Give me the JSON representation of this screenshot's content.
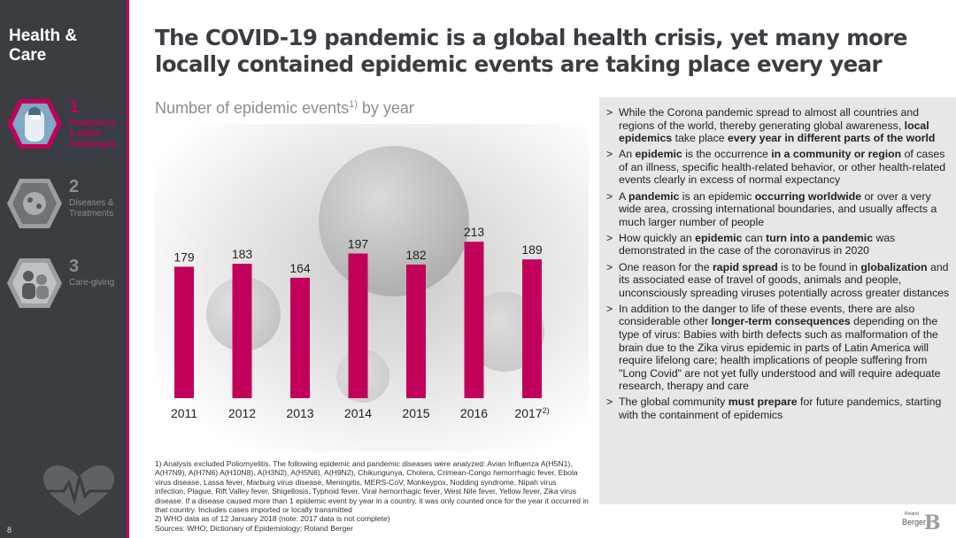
{
  "sidebar": {
    "title": "Health & Care",
    "items": [
      {
        "num": "1",
        "label": "Pandemics & Other Challenges",
        "active": true,
        "icon": "doctor-photo-icon"
      },
      {
        "num": "2",
        "label": "Diseases & Treatments",
        "active": false,
        "icon": "virus-photo-icon"
      },
      {
        "num": "3",
        "label": "Care-giving",
        "active": false,
        "icon": "caregiver-photo-icon"
      }
    ],
    "heart_icon": "heartbeat-icon",
    "page_number": "8"
  },
  "headline": "The COVID-19 pandemic is a global health crisis, yet many more locally contained epidemic events are taking place every year",
  "chart_title": {
    "text": "Number of epidemic events",
    "sup": "1)",
    "suffix": " by year"
  },
  "chart_data": {
    "type": "bar",
    "categories": [
      "2011",
      "2012",
      "2013",
      "2014",
      "2015",
      "2016",
      "2017"
    ],
    "category_notes": [
      "",
      "",
      "",
      "",
      "",
      "",
      "2)"
    ],
    "values": [
      179,
      183,
      164,
      197,
      182,
      213,
      189
    ],
    "bar_color": "#c1005a"
  },
  "footnotes": [
    "1) Analysis excluded Poliomyelitis. The following epidemic and pandemic diseases were analyzed: Avian Influenza A(H5N1), A(H7N9), A(H7N6) A(H10N8), A(H3N2), A(H5N6), A(H9N2), Chikungunya, Cholera, Crimean-Congo hemorrhagic fever, Ebola virus disease, Lassa fever, Marburg virus disease, Meningitis, MERS-CoV, Monkeypox, Nodding syndrome, Nipah virus infection, Plague, Rift Valley fever, Shigellosis, Typhoid fever, Viral hemorrhagic fever, West Nile fever, Yellow fever, Zika virus disease. If a disease caused more than 1 epidemic event by year in a country, it was only counted once for the year it occurred in that country. Includes cases imported or locally transmitted",
    "2) WHO data as of 12 January 2018 (note: 2017 data is not complete)",
    "Sources: WHO; Dictionary of Epidemiology; Roland Berger"
  ],
  "bullets": [
    [
      {
        "t": "While the Corona pandemic spread to almost all countries and regions of the world, thereby generating global awareness, ",
        "b": false
      },
      {
        "t": "local epidemics",
        "b": true
      },
      {
        "t": " take place ",
        "b": false
      },
      {
        "t": "every year in different parts of the world",
        "b": true
      }
    ],
    [
      {
        "t": "An ",
        "b": false
      },
      {
        "t": "epidemic",
        "b": true
      },
      {
        "t": " is the occurrence ",
        "b": false
      },
      {
        "t": "in a community or region",
        "b": true
      },
      {
        "t": " of cases of an illness, specific health-related behavior, or other health-related events clearly in excess of normal expectancy",
        "b": false
      }
    ],
    [
      {
        "t": "A ",
        "b": false
      },
      {
        "t": "pandemic",
        "b": true
      },
      {
        "t": " is an epidemic ",
        "b": false
      },
      {
        "t": "occurring worldwide",
        "b": true
      },
      {
        "t": " or over a very wide area, crossing international boundaries, and usually affects a much larger number of people",
        "b": false
      }
    ],
    [
      {
        "t": "How quickly an ",
        "b": false
      },
      {
        "t": "epidemic",
        "b": true
      },
      {
        "t": " can ",
        "b": false
      },
      {
        "t": "turn into a pandemic",
        "b": true
      },
      {
        "t": " was demonstrated in the case of the coronavirus in 2020",
        "b": false
      }
    ],
    [
      {
        "t": "One reason for the ",
        "b": false
      },
      {
        "t": "rapid spread",
        "b": true
      },
      {
        "t": " is to be found in ",
        "b": false
      },
      {
        "t": "globalization",
        "b": true
      },
      {
        "t": " and its associated ease of travel of goods, animals and people, unconsciously spreading viruses potentially across greater distances",
        "b": false
      }
    ],
    [
      {
        "t": "In addition to the danger to life of these events, there are also considerable other ",
        "b": false
      },
      {
        "t": "longer-term consequences",
        "b": true
      },
      {
        "t": " depending on the type of virus: Babies with birth defects such as malformation of the brain due to the Zika virus epidemic in parts of Latin America will require lifelong care; health implications of people suffering from \"Long Covid\" are not yet fully understood and will require adequate research, therapy and care",
        "b": false
      }
    ],
    [
      {
        "t": "The global community ",
        "b": false
      },
      {
        "t": "must prepare",
        "b": true
      },
      {
        "t": " for future pandemics, starting with the containment of epidemics",
        "b": false
      }
    ]
  ],
  "bullet_marker": ">",
  "logo": {
    "small": "Roland",
    "main": "Berger",
    "mark": "B"
  },
  "colors": {
    "accent": "#c1005a",
    "sidebar": "#3a3d42",
    "panel": "#e6e7e8"
  }
}
